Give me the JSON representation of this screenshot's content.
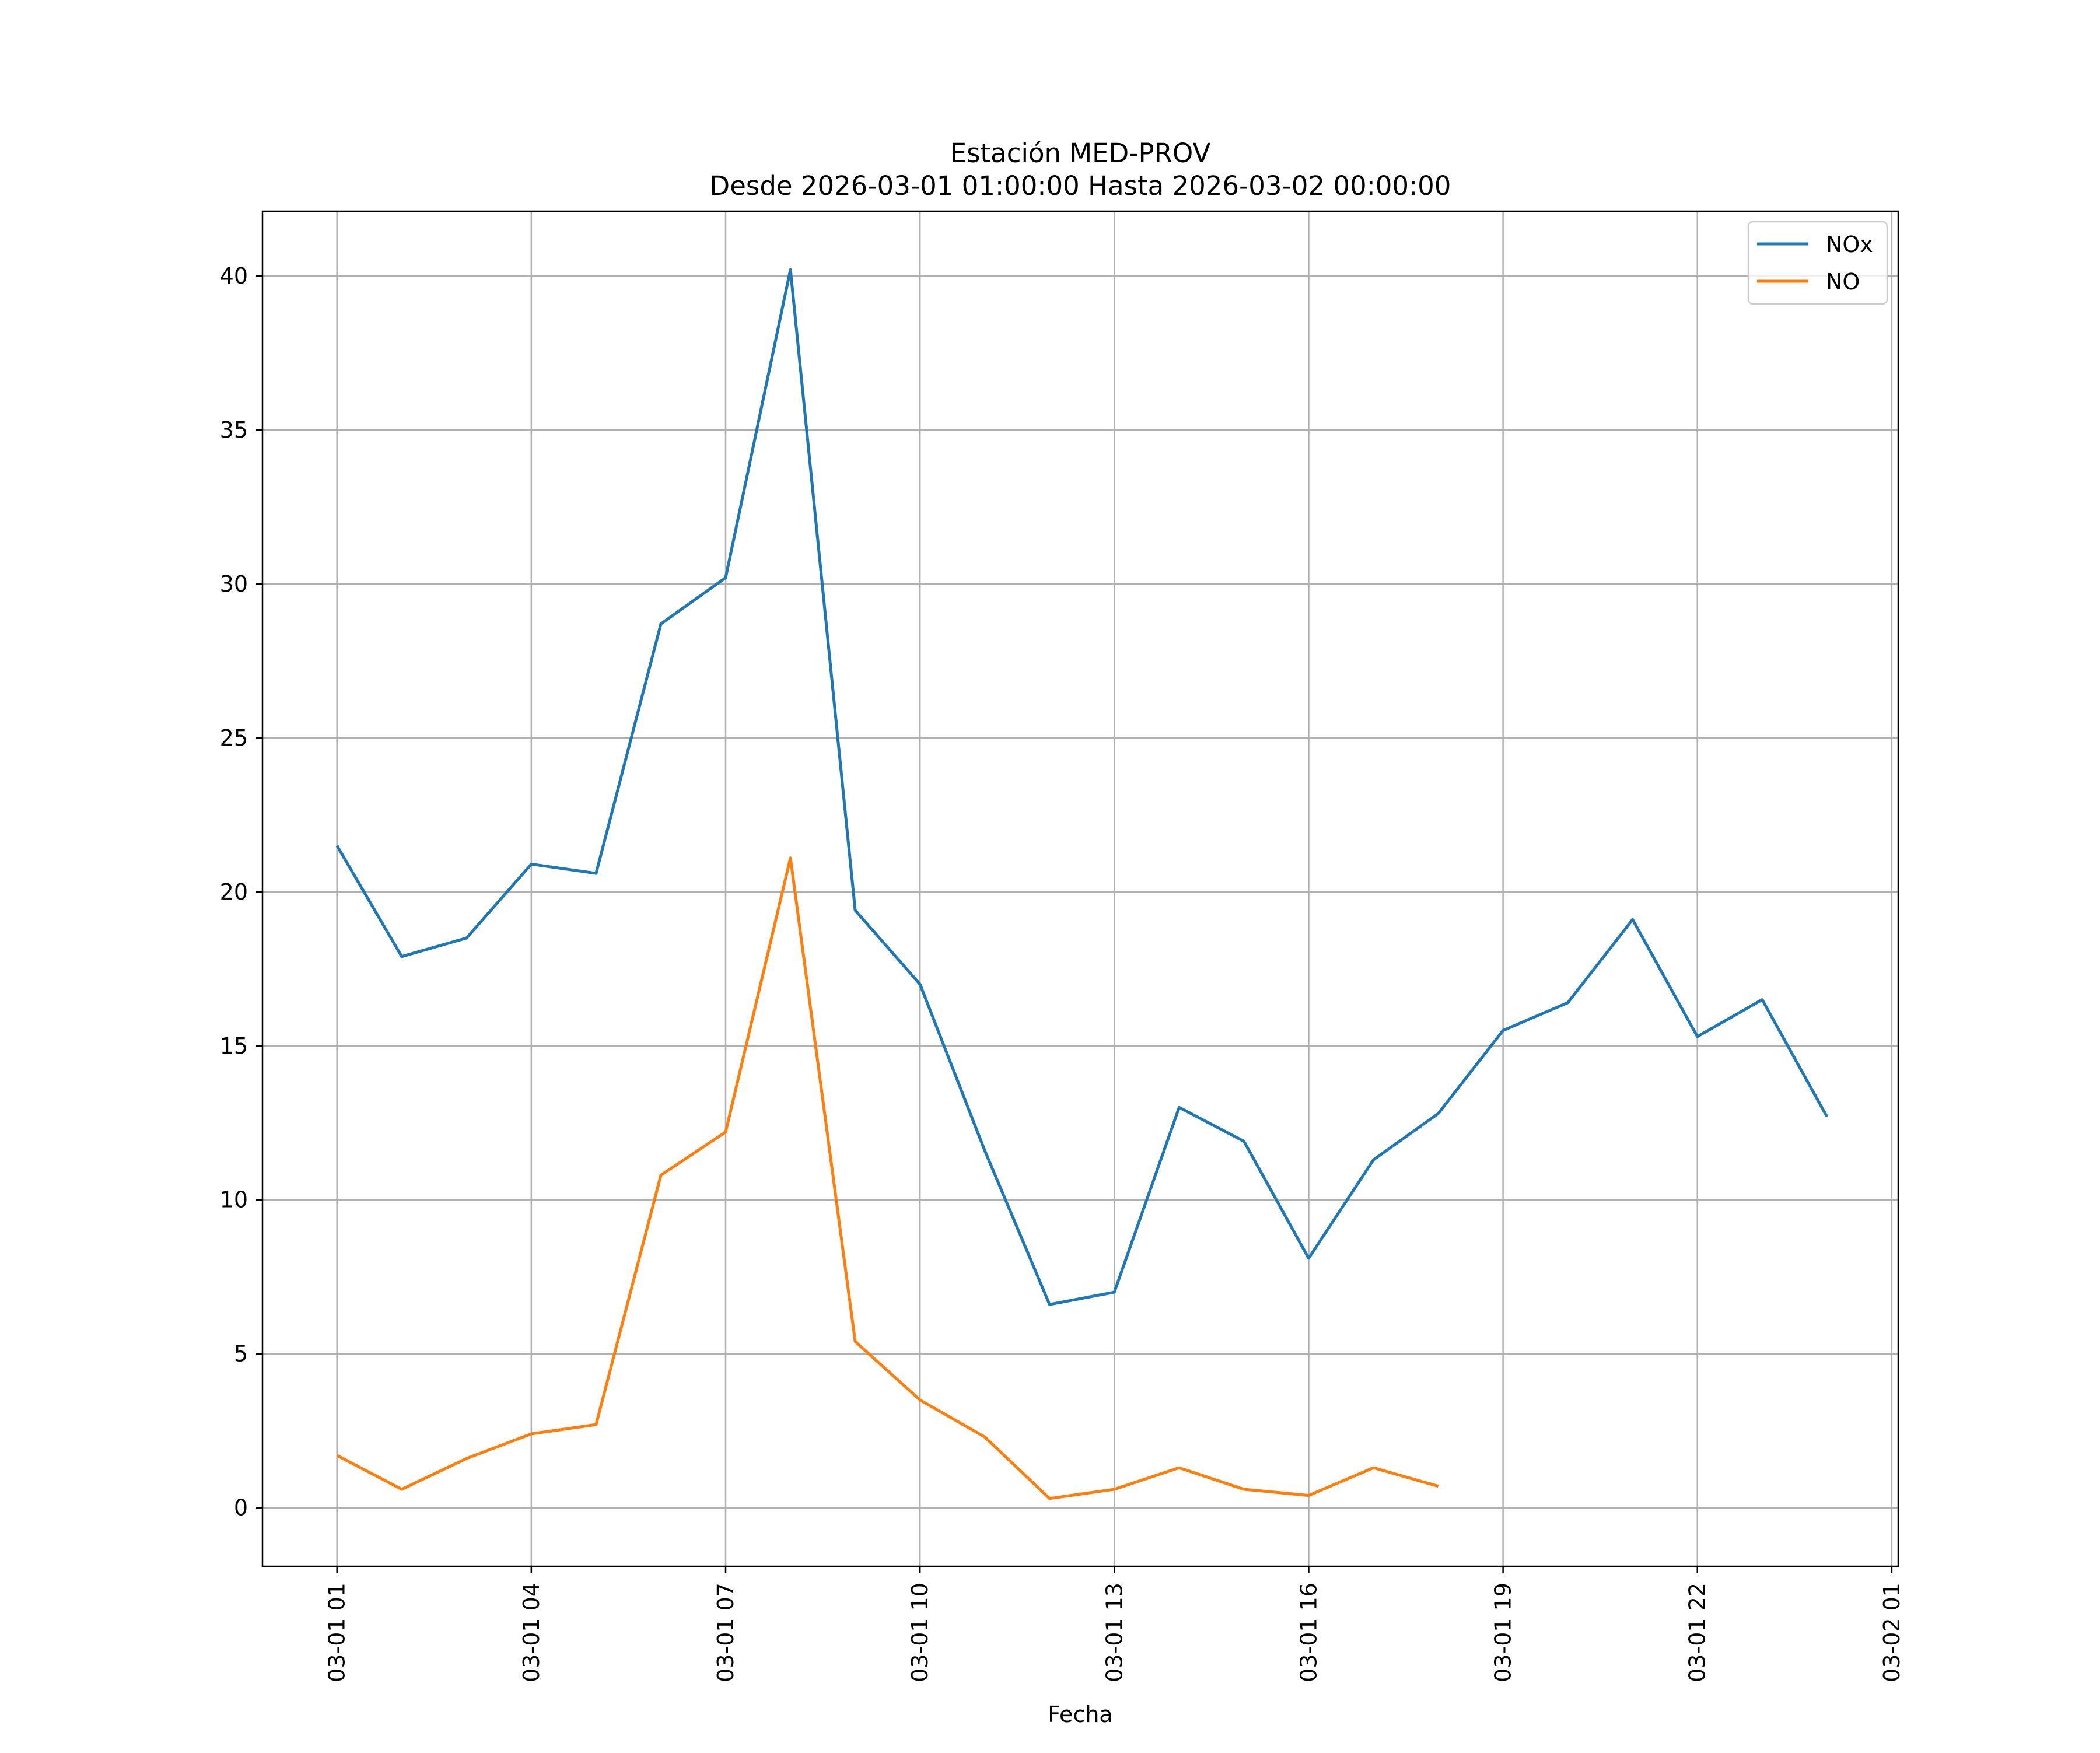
{
  "chart_data": {
    "type": "line",
    "title": "Estación MED-PROV",
    "subtitle": "Desde 2026-03-01 01:00:00 Hasta 2026-03-02 00:00:00",
    "xlabel": "Fecha",
    "ylabel": "",
    "x": [
      "03-01 01",
      "03-01 02",
      "03-01 03",
      "03-01 04",
      "03-01 05",
      "03-01 06",
      "03-01 07",
      "03-01 08",
      "03-01 09",
      "03-01 10",
      "03-01 11",
      "03-01 12",
      "03-01 13",
      "03-01 14",
      "03-01 15",
      "03-01 16",
      "03-01 17",
      "03-01 18",
      "03-01 19",
      "03-01 20",
      "03-01 21",
      "03-01 22",
      "03-01 23",
      "03-02 00"
    ],
    "x_hours": [
      0,
      1,
      2,
      3,
      4,
      5,
      6,
      7,
      8,
      9,
      10,
      11,
      12,
      13,
      14,
      15,
      16,
      17,
      18,
      19,
      20,
      21,
      22,
      23
    ],
    "xlim_hours": [
      -1.15,
      24.1
    ],
    "xticks": [
      {
        "hour": 0,
        "label": "03-01 01"
      },
      {
        "hour": 3,
        "label": "03-01 04"
      },
      {
        "hour": 6,
        "label": "03-01 07"
      },
      {
        "hour": 9,
        "label": "03-01 10"
      },
      {
        "hour": 12,
        "label": "03-01 13"
      },
      {
        "hour": 15,
        "label": "03-01 16"
      },
      {
        "hour": 18,
        "label": "03-01 19"
      },
      {
        "hour": 21,
        "label": "03-01 22"
      },
      {
        "hour": 24,
        "label": "03-02 01"
      }
    ],
    "ylim": [
      -1.9,
      42.1
    ],
    "yticks": [
      0,
      5,
      10,
      15,
      20,
      25,
      30,
      35,
      40
    ],
    "grid": true,
    "legend_position": "top-right",
    "series": [
      {
        "name": "NOx",
        "color": "#1f77b4",
        "values": [
          21.5,
          17.9,
          18.5,
          20.9,
          20.6,
          28.7,
          30.2,
          40.2,
          19.4,
          17.0,
          11.6,
          6.6,
          7.0,
          13.0,
          11.9,
          8.1,
          11.3,
          12.8,
          15.5,
          16.4,
          19.1,
          15.3,
          16.5,
          12.7
        ]
      },
      {
        "name": "NO",
        "color": "#ff7f0e",
        "values": [
          1.7,
          0.6,
          1.6,
          2.4,
          2.7,
          10.8,
          12.2,
          21.1,
          5.4,
          3.5,
          2.3,
          0.3,
          0.6,
          1.3,
          0.6,
          0.4,
          1.3,
          0.7,
          null,
          null,
          null,
          null,
          null,
          null
        ]
      }
    ]
  }
}
